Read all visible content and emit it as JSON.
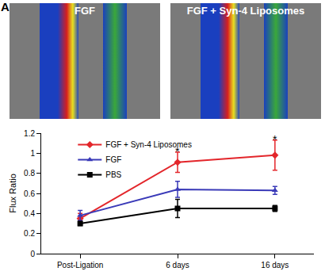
{
  "panel_label": "A",
  "images": [
    {
      "label": "FGF"
    },
    {
      "label": "FGF + Syn-4 Liposomes"
    }
  ],
  "chart_data": {
    "type": "line",
    "y_label": "Flux Ratio",
    "categories": [
      "Post-Ligation",
      "6 days",
      "16 days"
    ],
    "series": [
      {
        "name": "FGF + Syn-4 Liposomes",
        "color": "#e3262b",
        "marker": "diamond",
        "values": [
          0.35,
          0.91,
          0.98
        ],
        "errors": [
          0.05,
          0.1,
          0.15
        ]
      },
      {
        "name": "FGF",
        "color": "#3a3ab8",
        "marker": "triangle-up",
        "values": [
          0.38,
          0.64,
          0.63
        ],
        "errors": [
          0.05,
          0.08,
          0.04
        ]
      },
      {
        "name": "PBS",
        "color": "#000000",
        "marker": "square",
        "values": [
          0.3,
          0.45,
          0.45
        ],
        "errors": [
          0.02,
          0.09,
          0.03
        ]
      }
    ],
    "ylim": [
      0,
      1.2
    ],
    "yticks": [
      0,
      0.2,
      0.4,
      0.6,
      0.8,
      1,
      1.2
    ],
    "legend": "top left",
    "grid": false,
    "annotations": [
      {
        "text": "*",
        "x": "6 days",
        "y": 1.02
      },
      {
        "text": "*",
        "x": "16 days",
        "y": 1.14
      }
    ]
  }
}
